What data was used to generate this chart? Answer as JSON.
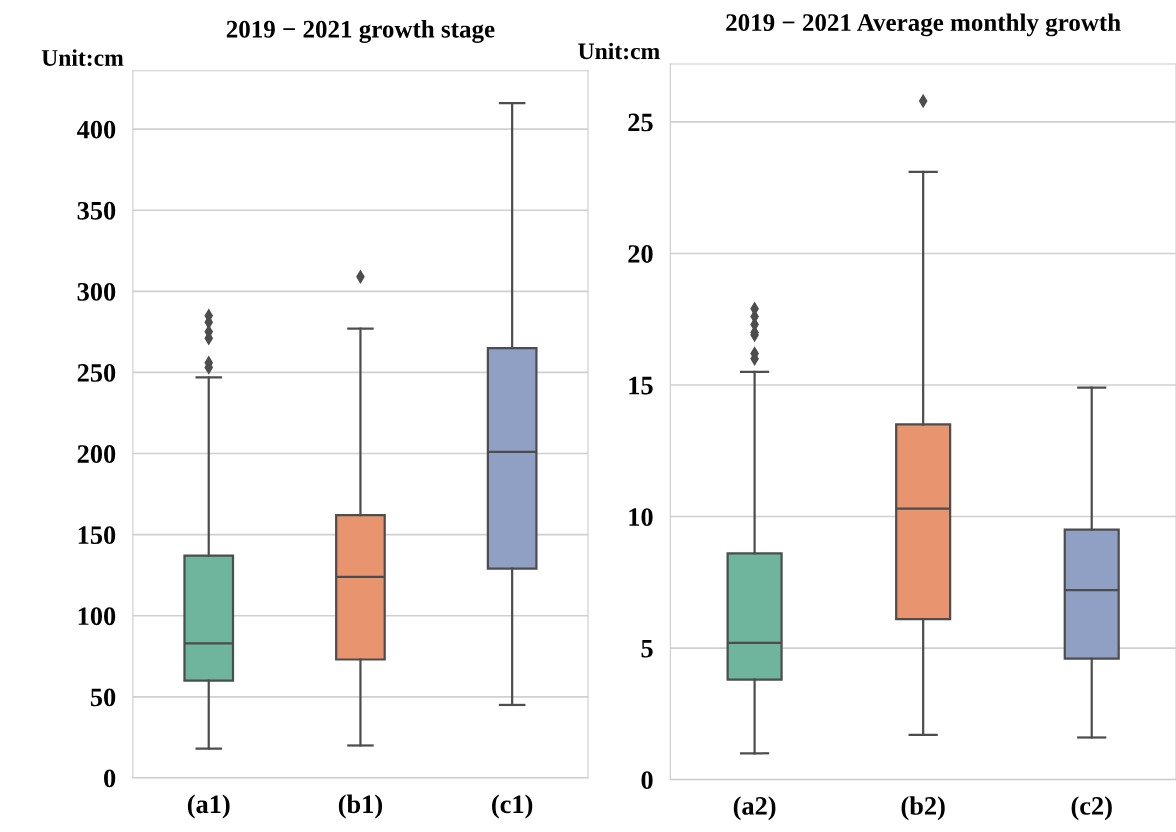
{
  "chart_data": [
    {
      "type": "box",
      "title": "2019 − 2021 growth stage",
      "ylabel": "Unit:cm",
      "categories": [
        "(a1)",
        "(b1)",
        "(c1)"
      ],
      "colors": [
        "#6fb59d",
        "#e8956f",
        "#8fa0c4"
      ],
      "ylim": [
        0,
        436
      ],
      "yticks": [
        0,
        50,
        100,
        150,
        200,
        250,
        300,
        350,
        400
      ],
      "grid": "y",
      "boxes": [
        {
          "low": 18,
          "q1": 60,
          "median": 83,
          "q3": 137,
          "high": 247,
          "outliers": [
            253,
            256,
            271,
            275,
            281,
            285
          ]
        },
        {
          "low": 20,
          "q1": 73,
          "median": 124,
          "q3": 162,
          "high": 277,
          "outliers": [
            309
          ]
        },
        {
          "low": 45,
          "q1": 129,
          "median": 201,
          "q3": 265,
          "high": 416
        }
      ]
    },
    {
      "type": "box",
      "title": "2019 − 2021 Average monthly growth",
      "ylabel": "Unit:cm",
      "categories": [
        "(a2)",
        "(b2)",
        "(c2)"
      ],
      "colors": [
        "#6fb59d",
        "#e8956f",
        "#8fa0c4"
      ],
      "ylim": [
        0,
        27.2
      ],
      "yticks": [
        0,
        5,
        10,
        15,
        20,
        25
      ],
      "grid": "y",
      "boxes": [
        {
          "low": 1.0,
          "q1": 3.8,
          "median": 5.2,
          "q3": 8.6,
          "high": 15.5,
          "outliers": [
            16.0,
            16.2,
            16.9,
            17.0,
            17.3,
            17.6,
            17.9
          ]
        },
        {
          "low": 1.7,
          "q1": 6.1,
          "median": 10.3,
          "q3": 13.5,
          "high": 23.1,
          "outliers": [
            25.8
          ]
        },
        {
          "low": 1.6,
          "q1": 4.6,
          "median": 7.2,
          "q3": 9.5,
          "high": 14.9
        }
      ]
    }
  ]
}
